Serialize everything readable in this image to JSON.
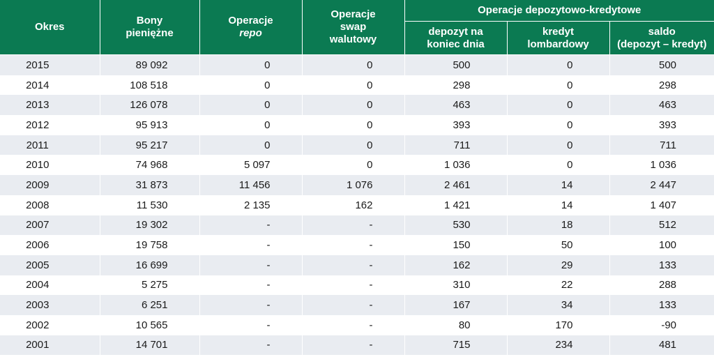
{
  "headers": {
    "okres": "Okres",
    "bony_l1": "Bony",
    "bony_l2": "pieniężne",
    "repo_l1": "Operacje",
    "repo_l2": "repo",
    "swap_l1": "Operacje",
    "swap_l2": "swap",
    "swap_l3": "walutowy",
    "group": "Operacje depozytowo-kredytowe",
    "depozyt_l1": "depozyt na",
    "depozyt_l2": "koniec dnia",
    "kredyt_l1": "kredyt",
    "kredyt_l2": "lombardowy",
    "saldo_l1": "saldo",
    "saldo_l2": "(depozyt – kredyt)"
  },
  "rows": [
    [
      "2015",
      "89 092",
      "0",
      "0",
      "500",
      "0",
      "500"
    ],
    [
      "2014",
      "108 518",
      "0",
      "0",
      "298",
      "0",
      "298"
    ],
    [
      "2013",
      "126 078",
      "0",
      "0",
      "463",
      "0",
      "463"
    ],
    [
      "2012",
      "95 913",
      "0",
      "0",
      "393",
      "0",
      "393"
    ],
    [
      "2011",
      "95 217",
      "0",
      "0",
      "711",
      "0",
      "711"
    ],
    [
      "2010",
      "74 968",
      "5 097",
      "0",
      "1 036",
      "0",
      "1 036"
    ],
    [
      "2009",
      "31 873",
      "11 456",
      "1 076",
      "2 461",
      "14",
      "2 447"
    ],
    [
      "2008",
      "11 530",
      "2 135",
      "162",
      "1 421",
      "14",
      "1 407"
    ],
    [
      "2007",
      "19 302",
      "-",
      "-",
      "530",
      "18",
      "512"
    ],
    [
      "2006",
      "19 758",
      "-",
      "-",
      "150",
      "50",
      "100"
    ],
    [
      "2005",
      "16 699",
      "-",
      "-",
      "162",
      "29",
      "133"
    ],
    [
      "2004",
      "5 275",
      "-",
      "-",
      "310",
      "22",
      "288"
    ],
    [
      "2003",
      "6 251",
      "-",
      "-",
      "167",
      "34",
      "133"
    ],
    [
      "2002",
      "10 565",
      "-",
      "-",
      "80",
      "170",
      "-90"
    ],
    [
      "2001",
      "14 701",
      "-",
      "-",
      "715",
      "234",
      "481"
    ]
  ],
  "colors": {
    "header_bg": "#0b7a52",
    "stripe": "#e9ecf1"
  }
}
